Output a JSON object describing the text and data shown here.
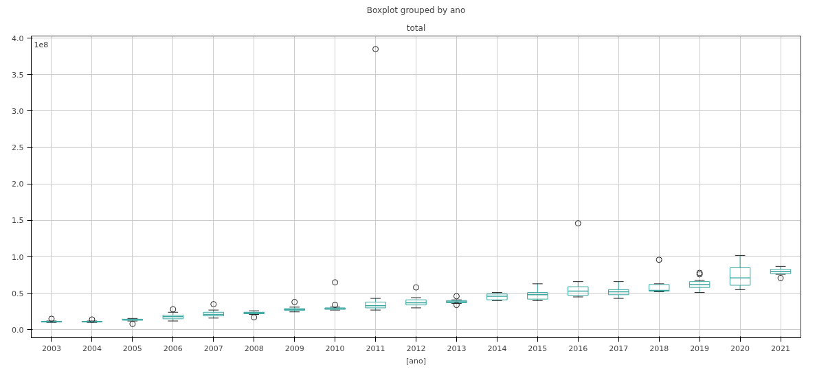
{
  "chart_data": {
    "type": "box",
    "title": "Boxplot grouped by ano",
    "subtitle": "total",
    "xlabel": "[ano]",
    "annotations": [
      "1e8"
    ],
    "categories": [
      "2003",
      "2004",
      "2005",
      "2006",
      "2007",
      "2008",
      "2009",
      "2010",
      "2011",
      "2012",
      "2013",
      "2014",
      "2015",
      "2016",
      "2017",
      "2018",
      "2019",
      "2020",
      "2021"
    ],
    "series": [
      {
        "color": "#3aa6a0",
        "boxes": [
          {
            "low": 0.1,
            "q1": 0.105,
            "median": 0.11,
            "q3": 0.115,
            "high": 0.12,
            "outliers": [
              0.15
            ]
          },
          {
            "low": 0.1,
            "q1": 0.105,
            "median": 0.11,
            "q3": 0.115,
            "high": 0.12,
            "outliers": [
              0.14
            ]
          },
          {
            "low": 0.12,
            "q1": 0.13,
            "median": 0.14,
            "q3": 0.145,
            "high": 0.155,
            "outliers": [
              0.08
            ]
          },
          {
            "low": 0.12,
            "q1": 0.15,
            "median": 0.18,
            "q3": 0.2,
            "high": 0.24,
            "outliers": [
              0.28
            ]
          },
          {
            "low": 0.16,
            "q1": 0.19,
            "median": 0.21,
            "q3": 0.24,
            "high": 0.27,
            "outliers": [
              0.35
            ]
          },
          {
            "low": 0.21,
            "q1": 0.22,
            "median": 0.23,
            "q3": 0.24,
            "high": 0.26,
            "outliers": [
              0.17
            ]
          },
          {
            "low": 0.245,
            "q1": 0.265,
            "median": 0.275,
            "q3": 0.29,
            "high": 0.31,
            "outliers": [
              0.38
            ]
          },
          {
            "low": 0.27,
            "q1": 0.28,
            "median": 0.29,
            "q3": 0.3,
            "high": 0.31,
            "outliers": [
              0.34,
              0.65
            ]
          },
          {
            "low": 0.27,
            "q1": 0.3,
            "median": 0.33,
            "q3": 0.38,
            "high": 0.43,
            "outliers": [
              3.85
            ]
          },
          {
            "low": 0.3,
            "q1": 0.34,
            "median": 0.37,
            "q3": 0.41,
            "high": 0.44,
            "outliers": [
              0.58
            ]
          },
          {
            "low": 0.36,
            "q1": 0.37,
            "median": 0.385,
            "q3": 0.4,
            "high": 0.41,
            "outliers": [
              0.34,
              0.46
            ]
          },
          {
            "low": 0.4,
            "q1": 0.41,
            "median": 0.46,
            "q3": 0.49,
            "high": 0.51
          },
          {
            "low": 0.4,
            "q1": 0.42,
            "median": 0.48,
            "q3": 0.51,
            "high": 0.63
          },
          {
            "low": 0.45,
            "q1": 0.47,
            "median": 0.53,
            "q3": 0.59,
            "high": 0.66,
            "outliers": [
              1.46
            ]
          },
          {
            "low": 0.43,
            "q1": 0.48,
            "median": 0.52,
            "q3": 0.55,
            "high": 0.66
          },
          {
            "low": 0.52,
            "q1": 0.53,
            "median": 0.54,
            "q3": 0.62,
            "high": 0.63,
            "outliers": [
              0.96
            ]
          },
          {
            "low": 0.51,
            "q1": 0.58,
            "median": 0.62,
            "q3": 0.66,
            "high": 0.68,
            "outliers": [
              0.76,
              0.78
            ]
          },
          {
            "low": 0.55,
            "q1": 0.61,
            "median": 0.71,
            "q3": 0.85,
            "high": 1.02
          },
          {
            "low": 0.76,
            "q1": 0.77,
            "median": 0.8,
            "q3": 0.83,
            "high": 0.87,
            "outliers": [
              0.71
            ]
          }
        ]
      }
    ],
    "ylim": [
      -0.11,
      4.03
    ],
    "yticks": [
      {
        "value": 0,
        "label": "0.0"
      },
      {
        "value": 0.5,
        "label": "0.5"
      },
      {
        "value": 1,
        "label": "1.0"
      },
      {
        "value": 1.5,
        "label": "1.5"
      },
      {
        "value": 2,
        "label": "2.0"
      },
      {
        "value": 2.5,
        "label": "2.5"
      },
      {
        "value": 3,
        "label": "3.0"
      },
      {
        "value": 3.5,
        "label": "3.5"
      },
      {
        "value": 4,
        "label": "4.0"
      }
    ],
    "grid": true
  }
}
